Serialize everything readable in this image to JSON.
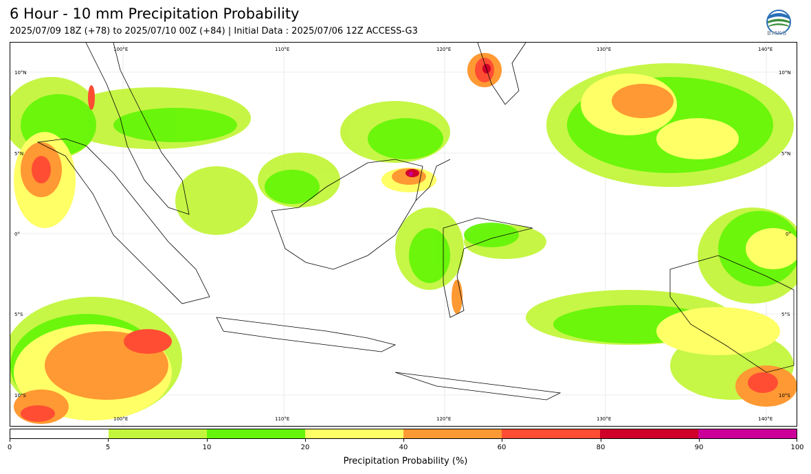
{
  "header": {
    "title": "6 Hour - 10 mm Precipitation Probability",
    "subtitle": "2025/07/09 18Z (+78) to 2025/07/10 00Z (+84) | Initial Data : 2025/07/06 12Z ACCESS-G3",
    "logo_text": "BMKG"
  },
  "map": {
    "lon_labels": [
      "100°E",
      "110°E",
      "120°E",
      "130°E",
      "140°E"
    ],
    "lat_labels": [
      "10°N",
      "5°N",
      "0°",
      "5°S",
      "10°S"
    ]
  },
  "colorbar": {
    "label": "Precipitation Probability (%)",
    "ticks": [
      "0",
      "5",
      "10",
      "20",
      "40",
      "60",
      "80",
      "90",
      "100"
    ],
    "colors": [
      "#ffffff",
      "#c3f53c",
      "#66f50a",
      "#ffff66",
      "#ff9933",
      "#ff4d33",
      "#d0002a",
      "#cc0099"
    ]
  }
}
